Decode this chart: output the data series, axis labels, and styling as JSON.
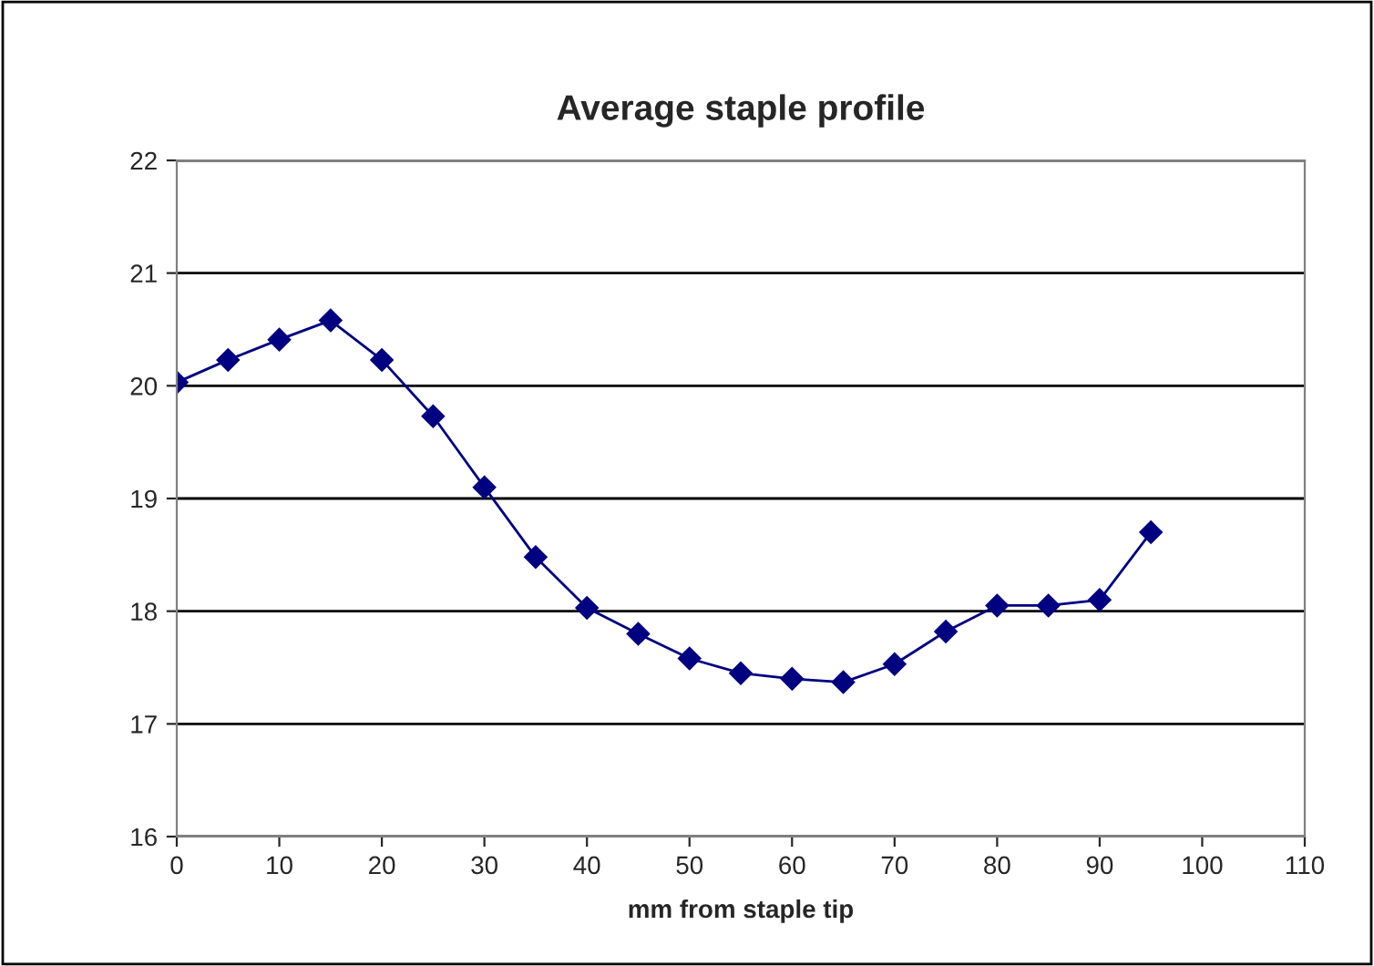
{
  "chart_data": {
    "type": "line",
    "title": "Average staple profile",
    "xlabel": "mm from staple tip",
    "x": [
      0,
      5,
      10,
      15,
      20,
      25,
      30,
      35,
      40,
      45,
      50,
      55,
      60,
      65,
      70,
      75,
      80,
      85,
      90,
      95
    ],
    "series": [
      {
        "color": "#000080",
        "values": [
          20.03,
          20.23,
          20.41,
          20.58,
          20.23,
          19.73,
          19.1,
          18.48,
          18.03,
          17.8,
          17.58,
          17.45,
          17.4,
          17.37,
          17.53,
          17.82,
          18.05,
          18.05,
          18.1,
          18.7
        ]
      }
    ],
    "xlim": [
      0,
      110
    ],
    "xticks": [
      0,
      10,
      20,
      30,
      40,
      50,
      60,
      70,
      80,
      90,
      100,
      110
    ],
    "ylim": [
      16,
      22
    ],
    "yticks": [
      16,
      17,
      18,
      19,
      20,
      21,
      22
    ],
    "grid": "y",
    "marker": "diamond",
    "line_style": "solid",
    "legend": false
  }
}
